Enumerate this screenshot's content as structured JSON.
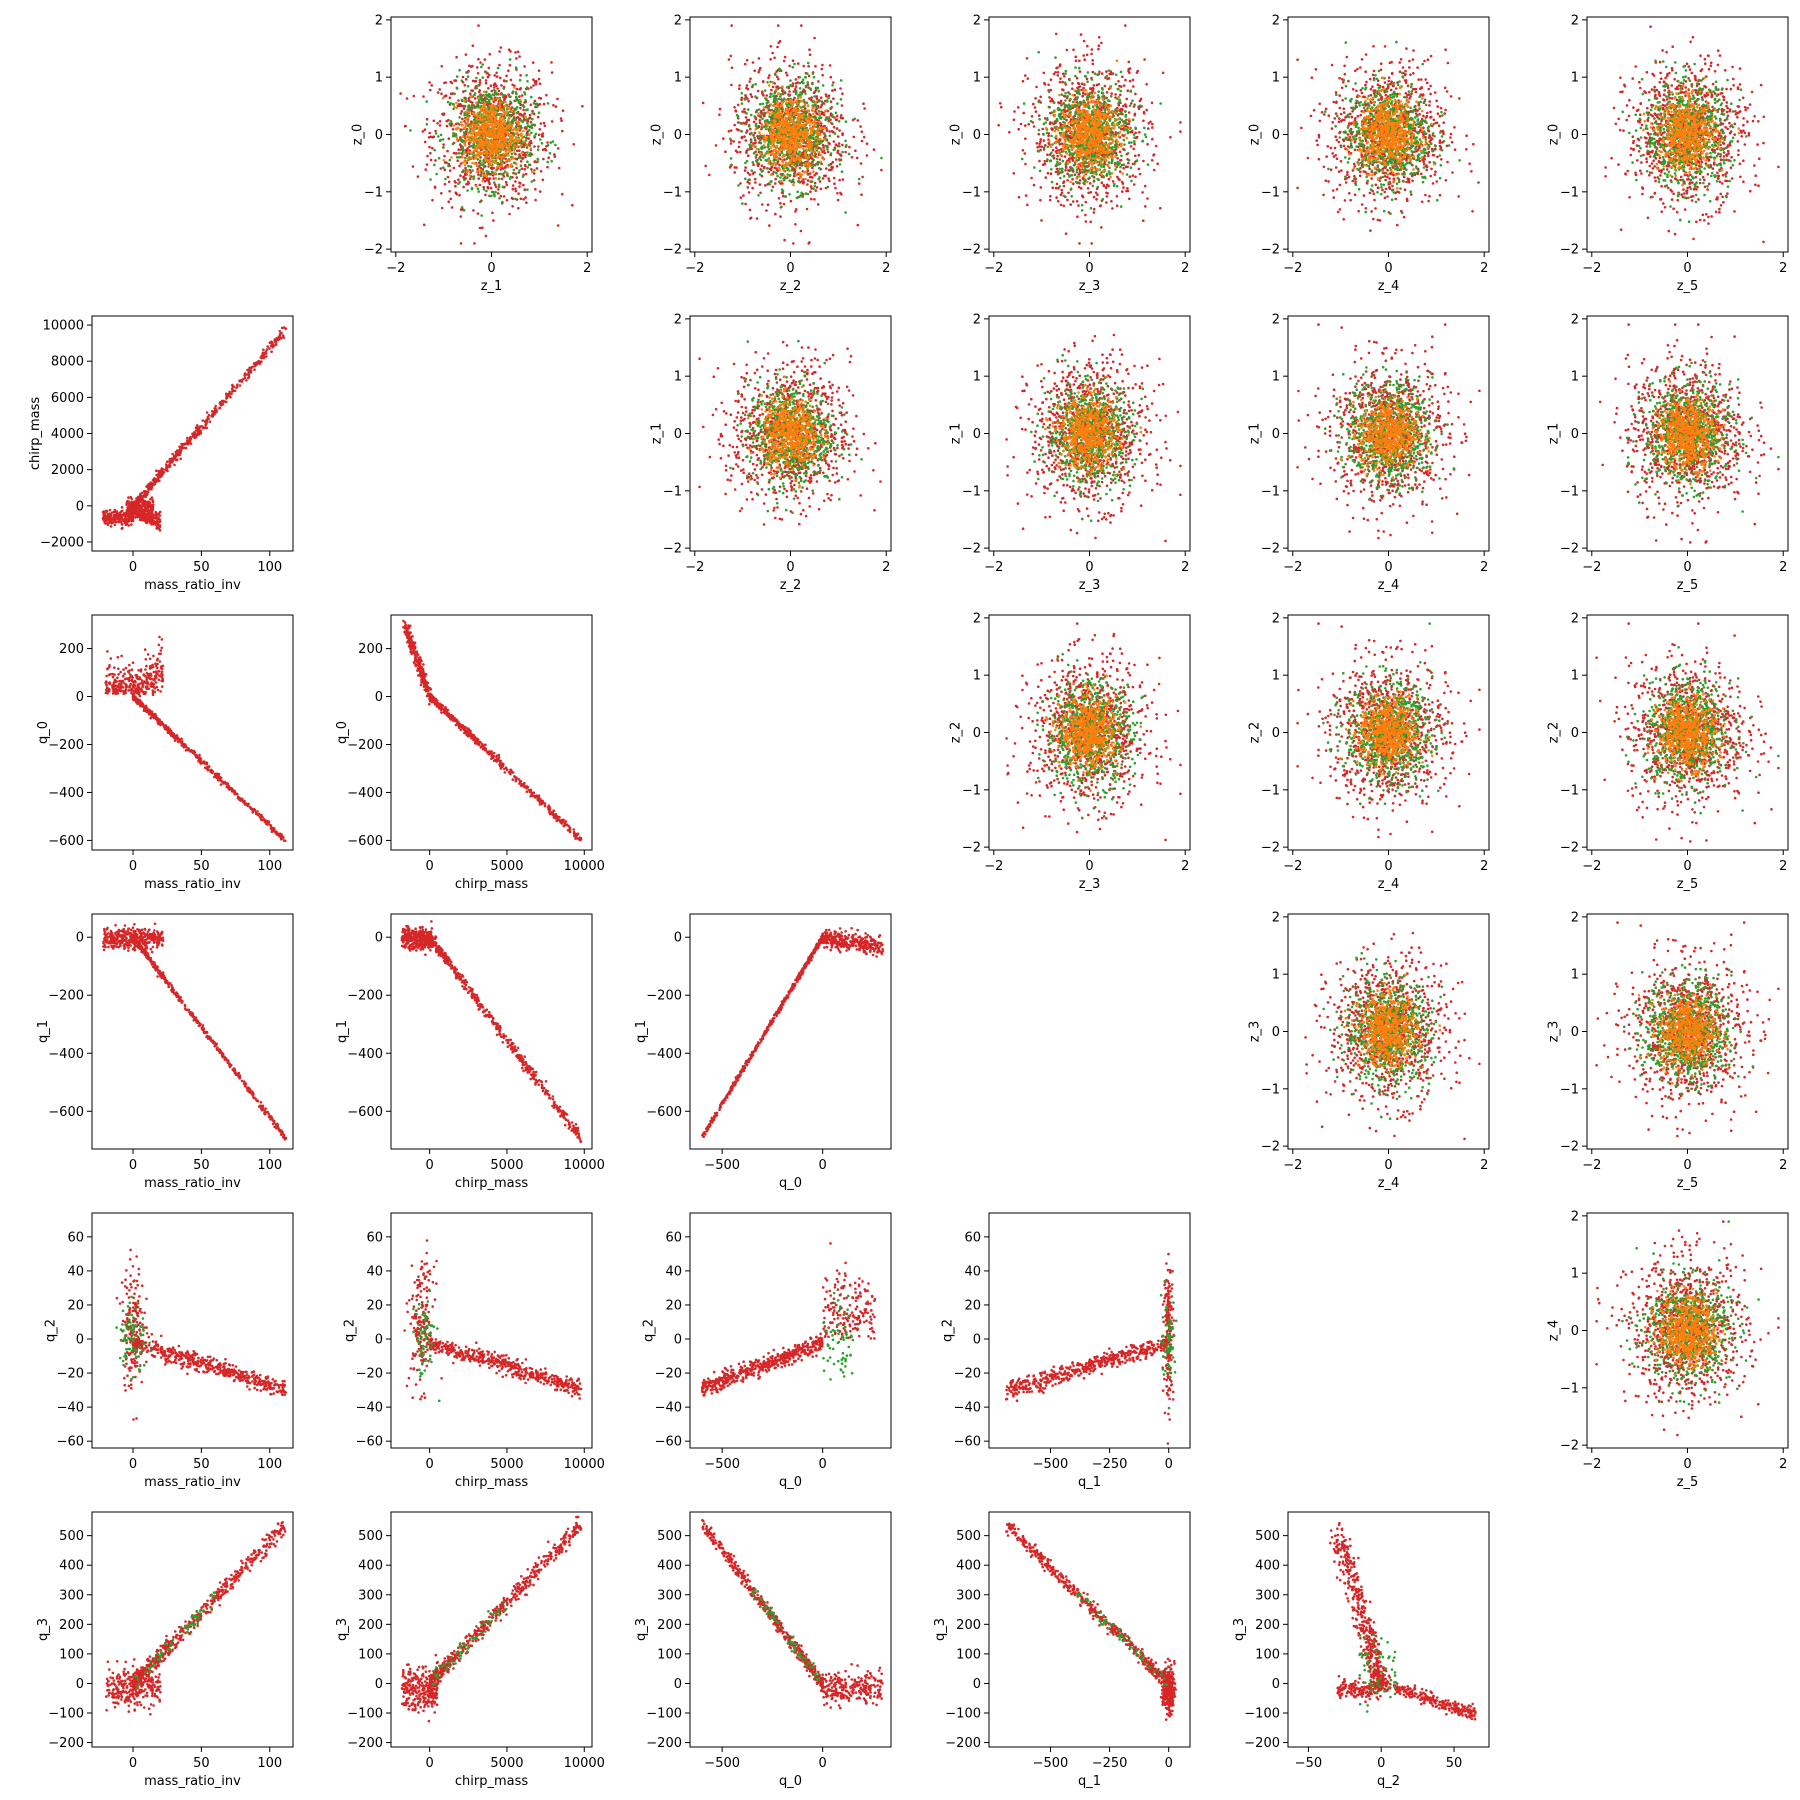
{
  "colors": {
    "series_a": "#d62728",
    "series_b": "#2ca02c",
    "series_c": "#ff7f0e",
    "frame": "#000000",
    "background": "#ffffff"
  },
  "chart_data": {
    "type": "scatter",
    "layout": "upper-and-lower-triangle pair grid",
    "panels": [
      {
        "row": 0,
        "col": 1,
        "xlabel": "z_1",
        "ylabel": "z_0",
        "shape": "blob",
        "xlim": [
          -2.1,
          2.1
        ],
        "ylim": [
          -2.05,
          2.05
        ],
        "xticks": [
          -2,
          0,
          2
        ],
        "yticks": [
          -2,
          -1,
          0,
          1,
          2
        ]
      },
      {
        "row": 0,
        "col": 2,
        "xlabel": "z_2",
        "ylabel": "z_0",
        "shape": "blob",
        "xlim": [
          -2.1,
          2.1
        ],
        "ylim": [
          -2.05,
          2.05
        ],
        "xticks": [
          -2,
          0,
          2
        ],
        "yticks": [
          -2,
          -1,
          0,
          1,
          2
        ]
      },
      {
        "row": 0,
        "col": 3,
        "xlabel": "z_3",
        "ylabel": "z_0",
        "shape": "blob",
        "xlim": [
          -2.1,
          2.1
        ],
        "ylim": [
          -2.05,
          2.05
        ],
        "xticks": [
          -2,
          0,
          2
        ],
        "yticks": [
          -2,
          -1,
          0,
          1,
          2
        ]
      },
      {
        "row": 0,
        "col": 4,
        "xlabel": "z_4",
        "ylabel": "z_0",
        "shape": "blob",
        "xlim": [
          -2.1,
          2.1
        ],
        "ylim": [
          -2.05,
          2.05
        ],
        "xticks": [
          -2,
          0,
          2
        ],
        "yticks": [
          -2,
          -1,
          0,
          1,
          2
        ]
      },
      {
        "row": 0,
        "col": 5,
        "xlabel": "z_5",
        "ylabel": "z_0",
        "shape": "blob",
        "xlim": [
          -2.1,
          2.1
        ],
        "ylim": [
          -2.05,
          2.05
        ],
        "xticks": [
          -2,
          0,
          2
        ],
        "yticks": [
          -2,
          -1,
          0,
          1,
          2
        ]
      },
      {
        "row": 1,
        "col": 0,
        "xlabel": "mass_ratio_inv",
        "ylabel": "chirp_mass",
        "shape": "ratio_chirp",
        "xlim": [
          -30,
          117
        ],
        "ylim": [
          -2500,
          10500
        ],
        "xticks": [
          0,
          50,
          100
        ],
        "yticks": [
          -2000,
          0,
          2000,
          4000,
          6000,
          8000,
          10000
        ]
      },
      {
        "row": 1,
        "col": 2,
        "xlabel": "z_2",
        "ylabel": "z_1",
        "shape": "blob",
        "xlim": [
          -2.1,
          2.1
        ],
        "ylim": [
          -2.05,
          2.05
        ],
        "xticks": [
          -2,
          0,
          2
        ],
        "yticks": [
          -2,
          -1,
          0,
          1,
          2
        ]
      },
      {
        "row": 1,
        "col": 3,
        "xlabel": "z_3",
        "ylabel": "z_1",
        "shape": "blob",
        "xlim": [
          -2.1,
          2.1
        ],
        "ylim": [
          -2.05,
          2.05
        ],
        "xticks": [
          -2,
          0,
          2
        ],
        "yticks": [
          -2,
          -1,
          0,
          1,
          2
        ]
      },
      {
        "row": 1,
        "col": 4,
        "xlabel": "z_4",
        "ylabel": "z_1",
        "shape": "blob",
        "xlim": [
          -2.1,
          2.1
        ],
        "ylim": [
          -2.05,
          2.05
        ],
        "xticks": [
          -2,
          0,
          2
        ],
        "yticks": [
          -2,
          -1,
          0,
          1,
          2
        ]
      },
      {
        "row": 1,
        "col": 5,
        "xlabel": "z_5",
        "ylabel": "z_1",
        "shape": "blob",
        "xlim": [
          -2.1,
          2.1
        ],
        "ylim": [
          -2.05,
          2.05
        ],
        "xticks": [
          -2,
          0,
          2
        ],
        "yticks": [
          -2,
          -1,
          0,
          1,
          2
        ]
      },
      {
        "row": 2,
        "col": 0,
        "xlabel": "mass_ratio_inv",
        "ylabel": "q_0",
        "shape": "ratio_q0",
        "xlim": [
          -30,
          117
        ],
        "ylim": [
          -640,
          340
        ],
        "xticks": [
          0,
          50,
          100
        ],
        "yticks": [
          -600,
          -400,
          -200,
          0,
          200
        ]
      },
      {
        "row": 2,
        "col": 1,
        "xlabel": "chirp_mass",
        "ylabel": "q_0",
        "shape": "chirp_q0",
        "xlim": [
          -2500,
          10500
        ],
        "ylim": [
          -640,
          340
        ],
        "xticks": [
          0,
          5000,
          10000
        ],
        "yticks": [
          -600,
          -400,
          -200,
          0,
          200
        ]
      },
      {
        "row": 2,
        "col": 3,
        "xlabel": "z_3",
        "ylabel": "z_2",
        "shape": "blob",
        "xlim": [
          -2.1,
          2.1
        ],
        "ylim": [
          -2.05,
          2.05
        ],
        "xticks": [
          -2,
          0,
          2
        ],
        "yticks": [
          -2,
          -1,
          0,
          1,
          2
        ]
      },
      {
        "row": 2,
        "col": 4,
        "xlabel": "z_4",
        "ylabel": "z_2",
        "shape": "blob",
        "xlim": [
          -2.1,
          2.1
        ],
        "ylim": [
          -2.05,
          2.05
        ],
        "xticks": [
          -2,
          0,
          2
        ],
        "yticks": [
          -2,
          -1,
          0,
          1,
          2
        ]
      },
      {
        "row": 2,
        "col": 5,
        "xlabel": "z_5",
        "ylabel": "z_2",
        "shape": "blob",
        "xlim": [
          -2.1,
          2.1
        ],
        "ylim": [
          -2.05,
          2.05
        ],
        "xticks": [
          -2,
          0,
          2
        ],
        "yticks": [
          -2,
          -1,
          0,
          1,
          2
        ]
      },
      {
        "row": 3,
        "col": 0,
        "xlabel": "mass_ratio_inv",
        "ylabel": "q_1",
        "shape": "ratio_q1",
        "xlim": [
          -30,
          117
        ],
        "ylim": [
          -730,
          80
        ],
        "xticks": [
          0,
          50,
          100
        ],
        "yticks": [
          -600,
          -400,
          -200,
          0
        ]
      },
      {
        "row": 3,
        "col": 1,
        "xlabel": "chirp_mass",
        "ylabel": "q_1",
        "shape": "chirp_q1",
        "xlim": [
          -2500,
          10500
        ],
        "ylim": [
          -730,
          80
        ],
        "xticks": [
          0,
          5000,
          10000
        ],
        "yticks": [
          -600,
          -400,
          -200,
          0
        ]
      },
      {
        "row": 3,
        "col": 2,
        "xlabel": "q_0",
        "ylabel": "q_1",
        "shape": "q0_q1",
        "xlim": [
          -660,
          340
        ],
        "ylim": [
          -730,
          80
        ],
        "xticks": [
          -500,
          0
        ],
        "yticks": [
          -600,
          -400,
          -200,
          0
        ]
      },
      {
        "row": 3,
        "col": 4,
        "xlabel": "z_4",
        "ylabel": "z_3",
        "shape": "blob",
        "xlim": [
          -2.1,
          2.1
        ],
        "ylim": [
          -2.05,
          2.05
        ],
        "xticks": [
          -2,
          0,
          2
        ],
        "yticks": [
          -2,
          -1,
          0,
          1,
          2
        ]
      },
      {
        "row": 3,
        "col": 5,
        "xlabel": "z_5",
        "ylabel": "z_3",
        "shape": "blob",
        "xlim": [
          -2.1,
          2.1
        ],
        "ylim": [
          -2.05,
          2.05
        ],
        "xticks": [
          -2,
          0,
          2
        ],
        "yticks": [
          -2,
          -1,
          0,
          1,
          2
        ]
      },
      {
        "row": 4,
        "col": 0,
        "xlabel": "mass_ratio_inv",
        "ylabel": "q_2",
        "shape": "ratio_q2",
        "xlim": [
          -30,
          117
        ],
        "ylim": [
          -64,
          74
        ],
        "xticks": [
          0,
          50,
          100
        ],
        "yticks": [
          -60,
          -40,
          -20,
          0,
          20,
          40,
          60
        ]
      },
      {
        "row": 4,
        "col": 1,
        "xlabel": "chirp_mass",
        "ylabel": "q_2",
        "shape": "chirp_q2",
        "xlim": [
          -2500,
          10500
        ],
        "ylim": [
          -64,
          74
        ],
        "xticks": [
          0,
          5000,
          10000
        ],
        "yticks": [
          -60,
          -40,
          -20,
          0,
          20,
          40,
          60
        ]
      },
      {
        "row": 4,
        "col": 2,
        "xlabel": "q_0",
        "ylabel": "q_2",
        "shape": "q0_q2",
        "xlim": [
          -660,
          340
        ],
        "ylim": [
          -64,
          74
        ],
        "xticks": [
          -500,
          0
        ],
        "yticks": [
          -60,
          -40,
          -20,
          0,
          20,
          40,
          60
        ]
      },
      {
        "row": 4,
        "col": 3,
        "xlabel": "q_1",
        "ylabel": "q_2",
        "shape": "q1_q2",
        "xlim": [
          -760,
          90
        ],
        "ylim": [
          -64,
          74
        ],
        "xticks": [
          -500,
          -250,
          0
        ],
        "yticks": [
          -60,
          -40,
          -20,
          0,
          20,
          40,
          60
        ]
      },
      {
        "row": 4,
        "col": 5,
        "xlabel": "z_5",
        "ylabel": "z_4",
        "shape": "blob",
        "xlim": [
          -2.1,
          2.1
        ],
        "ylim": [
          -2.05,
          2.05
        ],
        "xticks": [
          -2,
          0,
          2
        ],
        "yticks": [
          -2,
          -1,
          0,
          1,
          2
        ]
      },
      {
        "row": 5,
        "col": 0,
        "xlabel": "mass_ratio_inv",
        "ylabel": "q_3",
        "shape": "ratio_q3",
        "xlim": [
          -30,
          117
        ],
        "ylim": [
          -215,
          580
        ],
        "xticks": [
          0,
          50,
          100
        ],
        "yticks": [
          -200,
          -100,
          0,
          100,
          200,
          300,
          400,
          500
        ]
      },
      {
        "row": 5,
        "col": 1,
        "xlabel": "chirp_mass",
        "ylabel": "q_3",
        "shape": "chirp_q3",
        "xlim": [
          -2500,
          10500
        ],
        "ylim": [
          -215,
          580
        ],
        "xticks": [
          0,
          5000,
          10000
        ],
        "yticks": [
          -200,
          -100,
          0,
          100,
          200,
          300,
          400,
          500
        ]
      },
      {
        "row": 5,
        "col": 2,
        "xlabel": "q_0",
        "ylabel": "q_3",
        "shape": "q0_q3",
        "xlim": [
          -660,
          340
        ],
        "ylim": [
          -215,
          580
        ],
        "xticks": [
          -500,
          0
        ],
        "yticks": [
          -200,
          -100,
          0,
          100,
          200,
          300,
          400,
          500
        ]
      },
      {
        "row": 5,
        "col": 3,
        "xlabel": "q_1",
        "ylabel": "q_3",
        "shape": "q1_q3",
        "xlim": [
          -760,
          90
        ],
        "ylim": [
          -215,
          580
        ],
        "xticks": [
          -500,
          -250,
          0
        ],
        "yticks": [
          -200,
          -100,
          0,
          100,
          200,
          300,
          400,
          500
        ]
      },
      {
        "row": 5,
        "col": 4,
        "xlabel": "q_2",
        "ylabel": "q_3",
        "shape": "q2_q3",
        "xlim": [
          -64,
          74
        ],
        "ylim": [
          -215,
          580
        ],
        "xticks": [
          -50,
          0,
          50
        ],
        "yticks": [
          -200,
          -100,
          0,
          100,
          200,
          300,
          400,
          500
        ]
      }
    ]
  }
}
